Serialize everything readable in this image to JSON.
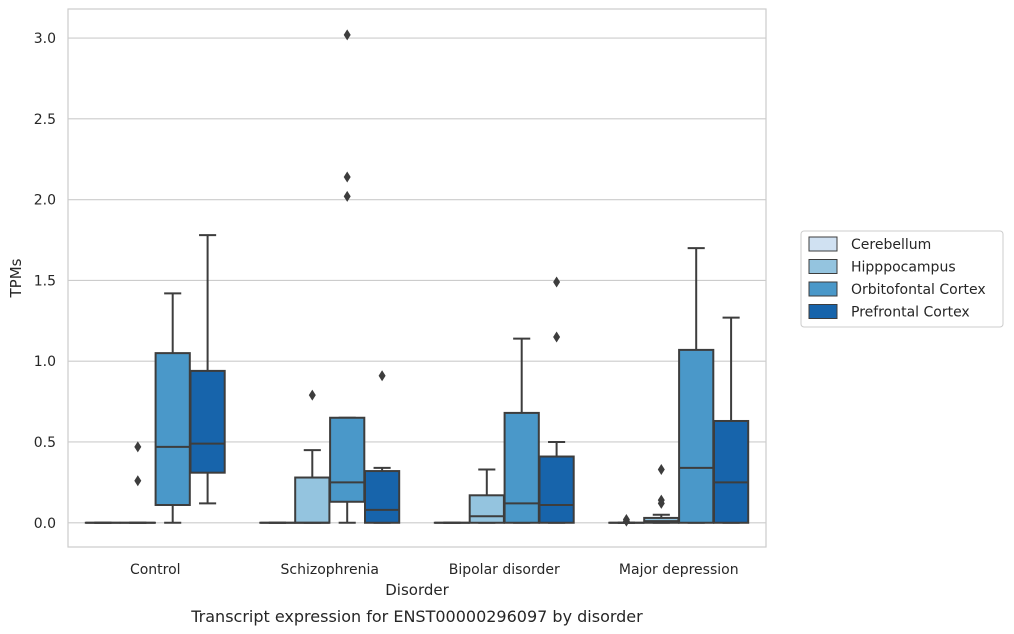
{
  "chart_data": {
    "type": "box",
    "title": "",
    "caption": "Transcript expression for ENST00000296097 by disorder",
    "xlabel": "Disorder",
    "ylabel": "TPMs",
    "ylim": [
      -0.15,
      3.18
    ],
    "yticks": [
      0.0,
      0.5,
      1.0,
      1.5,
      2.0,
      2.5,
      3.0
    ],
    "ytick_labels": [
      "0.0",
      "0.5",
      "1.0",
      "1.5",
      "2.0",
      "2.5",
      "3.0"
    ],
    "grid": "horizontal",
    "legend_position": "right",
    "categories": [
      "Control",
      "Schizophrenia",
      "Bipolar disorder",
      "Major depression"
    ],
    "series": [
      {
        "name": "Cerebellum",
        "color": "#d0e1f2",
        "boxes": [
          {
            "q1": 0.0,
            "median": 0.0,
            "q3": 0.0,
            "whisker_low": 0.0,
            "whisker_high": 0.0,
            "outliers": []
          },
          {
            "q1": 0.0,
            "median": 0.0,
            "q3": 0.0,
            "whisker_low": 0.0,
            "whisker_high": 0.0,
            "outliers": []
          },
          {
            "q1": 0.0,
            "median": 0.0,
            "q3": 0.0,
            "whisker_low": 0.0,
            "whisker_high": 0.0,
            "outliers": []
          },
          {
            "q1": 0.0,
            "median": 0.0,
            "q3": 0.0,
            "whisker_low": 0.0,
            "whisker_high": 0.0,
            "outliers": [
              0.01,
              0.02
            ]
          }
        ]
      },
      {
        "name": "Hipppocampus",
        "color": "#94c4df",
        "boxes": [
          {
            "q1": 0.0,
            "median": 0.0,
            "q3": 0.0,
            "whisker_low": 0.0,
            "whisker_high": 0.0,
            "outliers": [
              0.26,
              0.47
            ]
          },
          {
            "q1": 0.0,
            "median": 0.0,
            "q3": 0.28,
            "whisker_low": 0.0,
            "whisker_high": 0.45,
            "outliers": [
              0.79
            ]
          },
          {
            "q1": 0.0,
            "median": 0.04,
            "q3": 0.17,
            "whisker_low": 0.0,
            "whisker_high": 0.33,
            "outliers": []
          },
          {
            "q1": 0.0,
            "median": 0.01,
            "q3": 0.03,
            "whisker_low": 0.0,
            "whisker_high": 0.05,
            "outliers": [
              0.12,
              0.14,
              0.33
            ]
          }
        ]
      },
      {
        "name": "Orbitofontal Cortex",
        "color": "#4a98c9",
        "boxes": [
          {
            "q1": 0.11,
            "median": 0.47,
            "q3": 1.05,
            "whisker_low": 0.0,
            "whisker_high": 1.42,
            "outliers": []
          },
          {
            "q1": 0.13,
            "median": 0.25,
            "q3": 0.65,
            "whisker_low": 0.0,
            "whisker_high": 0.65,
            "outliers": [
              2.02,
              2.14,
              3.02
            ]
          },
          {
            "q1": 0.0,
            "median": 0.12,
            "q3": 0.68,
            "whisker_low": 0.0,
            "whisker_high": 1.14,
            "outliers": []
          },
          {
            "q1": 0.0,
            "median": 0.34,
            "q3": 1.07,
            "whisker_low": 0.0,
            "whisker_high": 1.7,
            "outliers": []
          }
        ]
      },
      {
        "name": "Prefrontal Cortex",
        "color": "#1764ab",
        "boxes": [
          {
            "q1": 0.31,
            "median": 0.49,
            "q3": 0.94,
            "whisker_low": 0.12,
            "whisker_high": 1.78,
            "outliers": []
          },
          {
            "q1": 0.0,
            "median": 0.08,
            "q3": 0.32,
            "whisker_low": 0.0,
            "whisker_high": 0.34,
            "outliers": [
              0.91
            ]
          },
          {
            "q1": 0.0,
            "median": 0.11,
            "q3": 0.41,
            "whisker_low": 0.0,
            "whisker_high": 0.5,
            "outliers": [
              1.15,
              1.49
            ]
          },
          {
            "q1": 0.0,
            "median": 0.25,
            "q3": 0.63,
            "whisker_low": 0.0,
            "whisker_high": 1.27,
            "outliers": []
          }
        ]
      }
    ]
  }
}
